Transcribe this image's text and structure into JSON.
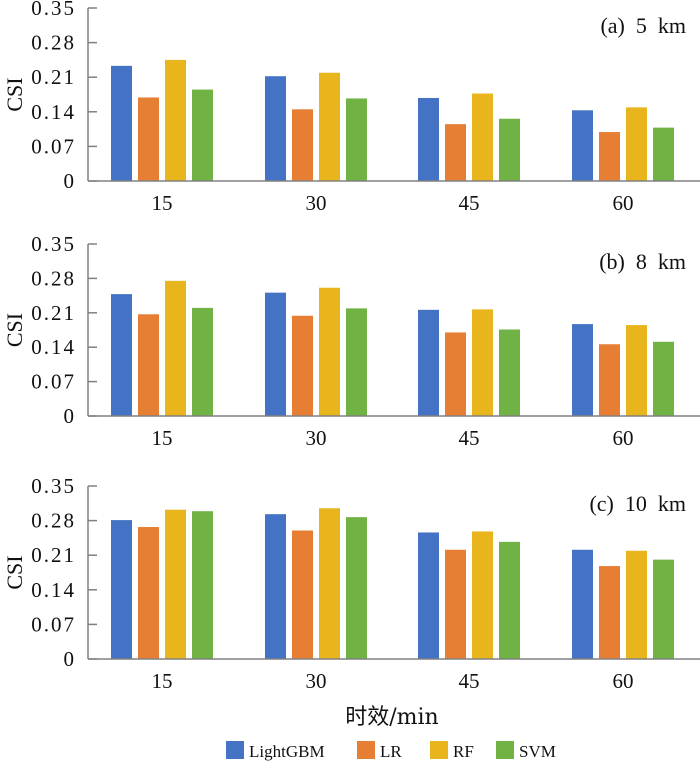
{
  "chart_data": {
    "type": "bar",
    "ylabel": "CSI",
    "xlabel": "时效/min",
    "ylim": [
      0,
      0.35
    ],
    "yticks": [
      "0",
      "0.07",
      "0.14",
      "0.21",
      "0.28",
      "0.35"
    ],
    "ytick_values": [
      0,
      0.07,
      0.14,
      0.21,
      0.28,
      0.35
    ],
    "categories": [
      "15",
      "30",
      "45",
      "60"
    ],
    "legend": {
      "placement": "bottom-center",
      "entries": [
        {
          "name": "LightGBM",
          "color": "#4472C4"
        },
        {
          "name": "LR",
          "color": "#E67E33"
        },
        {
          "name": "RF",
          "color": "#E8B51C"
        },
        {
          "name": "SVM",
          "color": "#70B244"
        }
      ]
    },
    "grid": false,
    "panels": [
      {
        "title": "(a)  5  km",
        "series": [
          {
            "name": "LightGBM",
            "values": [
              0.233,
              0.212,
              0.168,
              0.143
            ]
          },
          {
            "name": "LR",
            "values": [
              0.169,
              0.145,
              0.115,
              0.099
            ]
          },
          {
            "name": "RF",
            "values": [
              0.245,
              0.219,
              0.177,
              0.149
            ]
          },
          {
            "name": "SVM",
            "values": [
              0.185,
              0.167,
              0.126,
              0.108
            ]
          }
        ]
      },
      {
        "title": "(b)  8  km",
        "series": [
          {
            "name": "LightGBM",
            "values": [
              0.248,
              0.251,
              0.216,
              0.187
            ]
          },
          {
            "name": "LR",
            "values": [
              0.207,
              0.204,
              0.17,
              0.146
            ]
          },
          {
            "name": "RF",
            "values": [
              0.275,
              0.261,
              0.217,
              0.185
            ]
          },
          {
            "name": "SVM",
            "values": [
              0.22,
              0.219,
              0.176,
              0.151
            ]
          }
        ]
      },
      {
        "title": "(c)  10  km",
        "series": [
          {
            "name": "LightGBM",
            "values": [
              0.281,
              0.293,
              0.256,
              0.221
            ]
          },
          {
            "name": "LR",
            "values": [
              0.267,
              0.26,
              0.221,
              0.188
            ]
          },
          {
            "name": "RF",
            "values": [
              0.302,
              0.305,
              0.258,
              0.219
            ]
          },
          {
            "name": "SVM",
            "values": [
              0.299,
              0.287,
              0.237,
              0.201
            ]
          }
        ]
      }
    ]
  }
}
